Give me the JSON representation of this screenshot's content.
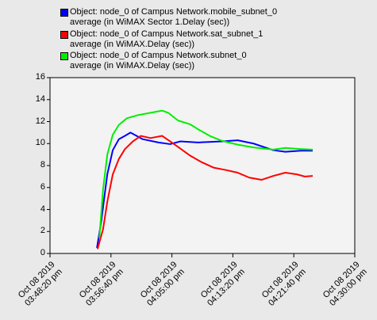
{
  "chart_data": {
    "type": "line",
    "xlim": [
      "2019-10-08T15:48:20",
      "2019-10-08T16:30:00"
    ],
    "xticks": [
      {
        "value": "2019-10-08T15:48:20",
        "label": "Oct 08 2019\n03:48:20 pm"
      },
      {
        "value": "2019-10-08T15:56:40",
        "label": "Oct 08 2019\n03:56:40 pm"
      },
      {
        "value": "2019-10-08T16:05:00",
        "label": "Oct 08 2019\n04:05:00 pm"
      },
      {
        "value": "2019-10-08T16:13:20",
        "label": "Oct 08 2019\n04:13:20 pm"
      },
      {
        "value": "2019-10-08T16:21:40",
        "label": "Oct 08 2019\n04:21:40 pm"
      },
      {
        "value": "2019-10-08T16:30:00",
        "label": "Oct 08 2019\n04:30:00 pm"
      }
    ],
    "ylim": [
      0,
      16
    ],
    "yticks": [
      0,
      2,
      4,
      6,
      8,
      10,
      12,
      14,
      16
    ],
    "grid": false,
    "legend": "top-left",
    "series": [
      {
        "name": "Object: node_0 of Campus Network.mobile_subnet_0\naverage (in WiMAX Sector 1.Delay (sec))",
        "color": "#0000ff",
        "x": [
          "2019-10-08T15:54:45",
          "2019-10-08T15:55:20",
          "2019-10-08T15:56:10",
          "2019-10-08T15:56:55",
          "2019-10-08T15:57:45",
          "2019-10-08T15:58:35",
          "2019-10-08T15:59:20",
          "2019-10-08T16:00:10",
          "2019-10-08T16:01:00",
          "2019-10-08T16:03:10",
          "2019-10-08T16:04:45",
          "2019-10-08T16:06:10",
          "2019-10-08T16:08:35",
          "2019-10-08T16:11:50",
          "2019-10-08T16:14:00",
          "2019-10-08T16:16:10",
          "2019-10-08T16:18:50",
          "2019-10-08T16:20:30",
          "2019-10-08T16:22:40",
          "2019-10-08T16:24:15"
        ],
        "values": [
          0.5,
          2.9,
          7.2,
          9.4,
          10.4,
          10.7,
          11.0,
          10.7,
          10.4,
          10.1,
          9.95,
          10.2,
          10.1,
          10.2,
          10.3,
          10.0,
          9.4,
          9.25,
          9.35,
          9.35
        ]
      },
      {
        "name": "Object: node_0 of Campus Network.sat_subnet_1\naverage (in WiMAX.Delay (sec))",
        "color": "#ff0000",
        "x": [
          "2019-10-08T15:54:50",
          "2019-10-08T15:55:35",
          "2019-10-08T15:56:10",
          "2019-10-08T15:56:55",
          "2019-10-08T15:57:45",
          "2019-10-08T15:58:35",
          "2019-10-08T15:59:40",
          "2019-10-08T16:00:45",
          "2019-10-08T16:02:05",
          "2019-10-08T16:03:40",
          "2019-10-08T16:04:45",
          "2019-10-08T16:05:50",
          "2019-10-08T16:07:30",
          "2019-10-08T16:09:05",
          "2019-10-08T16:10:45",
          "2019-10-08T16:12:20",
          "2019-10-08T16:14:00",
          "2019-10-08T16:15:35",
          "2019-10-08T16:17:15",
          "2019-10-08T16:18:50",
          "2019-10-08T16:20:30",
          "2019-10-08T16:22:05",
          "2019-10-08T16:23:10",
          "2019-10-08T16:24:15"
        ],
        "values": [
          0.4,
          2.2,
          4.7,
          7.2,
          8.6,
          9.5,
          10.2,
          10.7,
          10.5,
          10.7,
          10.2,
          9.7,
          8.9,
          8.3,
          7.8,
          7.6,
          7.35,
          6.9,
          6.7,
          7.05,
          7.35,
          7.2,
          7.0,
          7.05
        ]
      },
      {
        "name": "Object: node_0 of Campus Network.subnet_0\naverage (in WiMAX.Delay (sec))",
        "color": "#00ee00",
        "x": [
          "2019-10-08T15:55:05",
          "2019-10-08T15:55:35",
          "2019-10-08T15:56:10",
          "2019-10-08T15:56:55",
          "2019-10-08T15:57:45",
          "2019-10-08T15:58:50",
          "2019-10-08T16:00:25",
          "2019-10-08T16:02:05",
          "2019-10-08T16:03:40",
          "2019-10-08T16:04:30",
          "2019-10-08T16:05:50",
          "2019-10-08T16:07:30",
          "2019-10-08T16:08:35",
          "2019-10-08T16:10:10",
          "2019-10-08T16:11:50",
          "2019-10-08T16:14:00",
          "2019-10-08T16:16:10",
          "2019-10-08T16:18:50",
          "2019-10-08T16:20:30",
          "2019-10-08T16:22:40",
          "2019-10-08T16:24:15"
        ],
        "values": [
          1.4,
          5.8,
          9.0,
          10.8,
          11.7,
          12.3,
          12.6,
          12.8,
          13.0,
          12.8,
          12.1,
          11.75,
          11.3,
          10.7,
          10.25,
          9.9,
          9.65,
          9.45,
          9.6,
          9.5,
          9.45
        ]
      }
    ]
  }
}
